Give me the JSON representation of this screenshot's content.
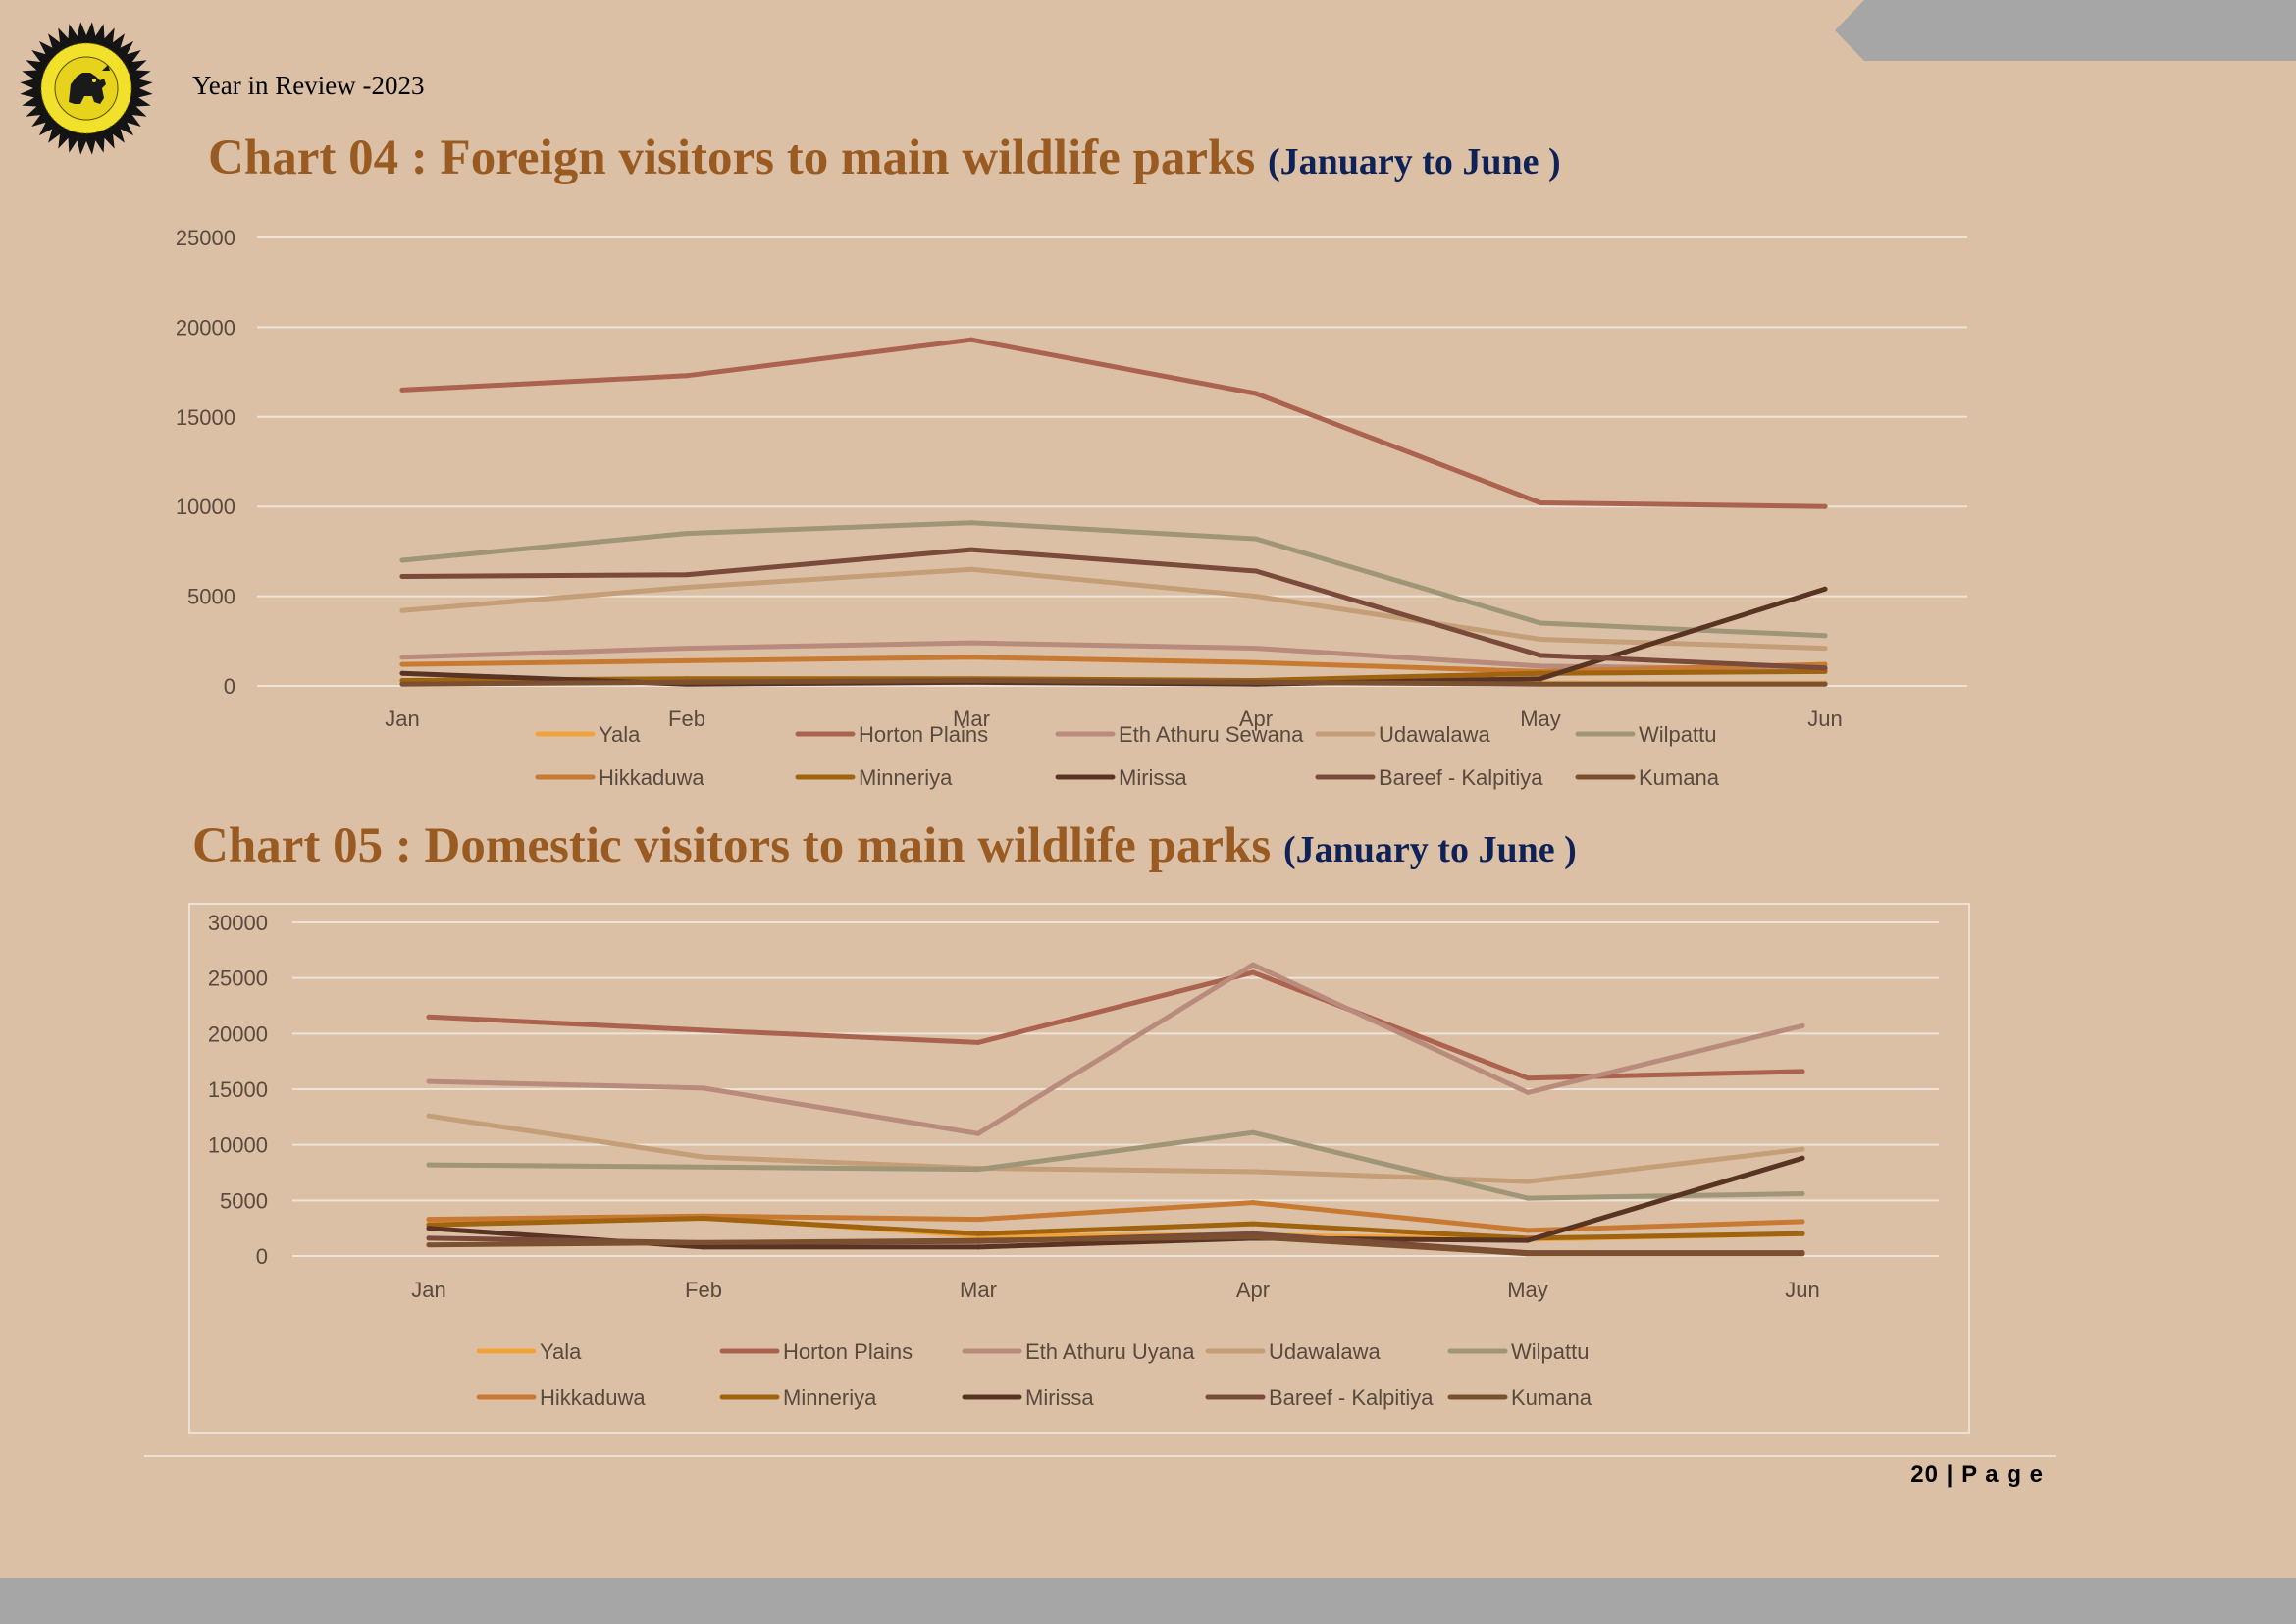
{
  "header": {
    "report_title": "Year in Review -2023",
    "page_number": "20",
    "page_word": "P a g e"
  },
  "colors": {
    "page_bg": "#dbc0a6",
    "title": "#9a5b23",
    "subtitle": "#0f2257",
    "band": "#a6a6a6"
  },
  "logo": {
    "icon": "sri-lanka-lion-emblem-icon"
  },
  "chart_data": [
    {
      "id": "chart04",
      "type": "line",
      "title": "Chart 04 : Foreign visitors to main wildlife parks",
      "subtitle": "(January to June )",
      "categories": [
        "Jan",
        "Feb",
        "Mar",
        "Apr",
        "May",
        "Jun"
      ],
      "ylim": [
        0,
        25000
      ],
      "yticks": [
        0,
        5000,
        10000,
        15000,
        20000,
        25000
      ],
      "grid": true,
      "legend_position": "bottom",
      "series": [
        {
          "name": "Yala",
          "color": "#f0a33a",
          "values": [
            200,
            200,
            200,
            200,
            150,
            150
          ]
        },
        {
          "name": "Horton Plains",
          "color": "#ab6350",
          "values": [
            16500,
            17300,
            19300,
            16300,
            10200,
            10000
          ]
        },
        {
          "name": "Eth Athuru Sewana",
          "color": "#b88b7c",
          "values": [
            1600,
            2100,
            2400,
            2100,
            1100,
            900
          ]
        },
        {
          "name": "Udawalawa",
          "color": "#c49e76",
          "values": [
            4200,
            5500,
            6500,
            5000,
            2600,
            2100
          ]
        },
        {
          "name": "Wilpattu",
          "color": "#9e9677",
          "values": [
            7000,
            8500,
            9100,
            8200,
            3500,
            2800
          ]
        },
        {
          "name": "Hikkaduwa",
          "color": "#c87a32",
          "values": [
            1200,
            1400,
            1600,
            1300,
            800,
            1200
          ]
        },
        {
          "name": "Minneriya",
          "color": "#a0630f",
          "values": [
            300,
            400,
            400,
            300,
            700,
            800
          ]
        },
        {
          "name": "Mirissa",
          "color": "#5a3423",
          "values": [
            700,
            100,
            200,
            100,
            400,
            5400
          ]
        },
        {
          "name": "Bareef - Kalpitiya",
          "color": "#7a4a3a",
          "values": [
            6100,
            6200,
            7600,
            6400,
            1700,
            1000
          ]
        },
        {
          "name": "Kumana",
          "color": "#7a5030",
          "values": [
            100,
            200,
            300,
            200,
            100,
            100
          ]
        }
      ]
    },
    {
      "id": "chart05",
      "type": "line",
      "title": "Chart 05 : Domestic visitors to main wildlife parks",
      "subtitle": "(January to June )",
      "categories": [
        "Jan",
        "Feb",
        "Mar",
        "Apr",
        "May",
        "Jun"
      ],
      "ylim": [
        0,
        30000
      ],
      "yticks": [
        0,
        5000,
        10000,
        15000,
        20000,
        25000,
        30000
      ],
      "grid": true,
      "legend_position": "bottom",
      "series": [
        {
          "name": "Yala",
          "color": "#f0a33a",
          "values": [
            3000,
            3500,
            1800,
            1900,
            1500,
            2000
          ]
        },
        {
          "name": "Horton Plains",
          "color": "#ab6350",
          "values": [
            21500,
            20300,
            19200,
            25500,
            16000,
            16600
          ]
        },
        {
          "name": "Eth Athuru Uyana",
          "color": "#b88b7c",
          "values": [
            15700,
            15100,
            11000,
            26200,
            14700,
            20700
          ]
        },
        {
          "name": "Udawalawa",
          "color": "#c49e76",
          "values": [
            12600,
            8900,
            7900,
            7600,
            6700,
            9600
          ]
        },
        {
          "name": "Wilpattu",
          "color": "#9e9677",
          "values": [
            8200,
            8000,
            7800,
            11100,
            5200,
            5600
          ]
        },
        {
          "name": "Hikkaduwa",
          "color": "#c87a32",
          "values": [
            3300,
            3600,
            3300,
            4800,
            2300,
            3100
          ]
        },
        {
          "name": "Minneriya",
          "color": "#a0630f",
          "values": [
            2800,
            3400,
            2000,
            2900,
            1600,
            2000
          ]
        },
        {
          "name": "Mirissa",
          "color": "#5a3423",
          "values": [
            2500,
            800,
            800,
            1600,
            1400,
            8800
          ]
        },
        {
          "name": "Bareef - Kalpitiya",
          "color": "#7a4a3a",
          "values": [
            1600,
            1200,
            1300,
            2000,
            300,
            300
          ]
        },
        {
          "name": "Kumana",
          "color": "#7a5030",
          "values": [
            1000,
            1200,
            1400,
            1700,
            200,
            200
          ]
        }
      ]
    }
  ]
}
